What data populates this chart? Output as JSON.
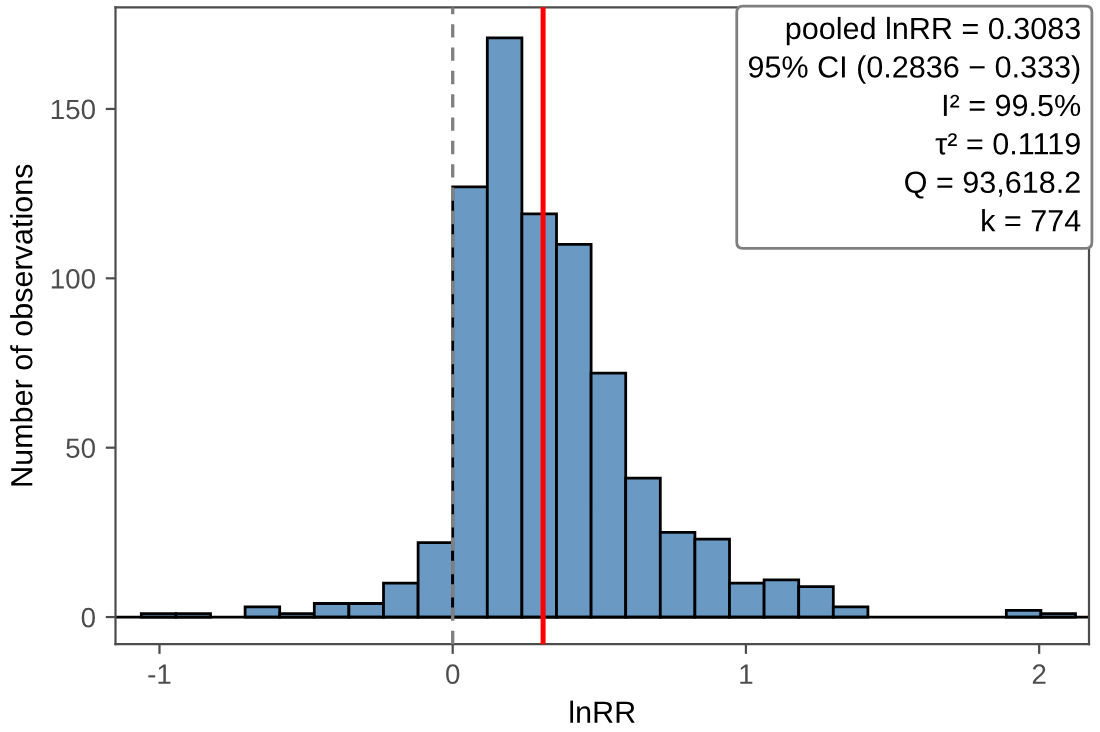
{
  "chart_data": {
    "type": "histogram",
    "xlabel": "lnRR",
    "ylabel": "Number of observations",
    "bins": [
      -1.062,
      -0.944,
      -0.826,
      -0.708,
      -0.59,
      -0.472,
      -0.354,
      -0.236,
      -0.118,
      0,
      0.118,
      0.236,
      0.354,
      0.472,
      0.59,
      0.708,
      0.826,
      0.944,
      1.062,
      1.18,
      1.298,
      1.416,
      1.534,
      1.652,
      1.77,
      1.888,
      2.006,
      2.124
    ],
    "values": [
      1,
      1,
      0,
      3,
      1,
      4,
      4,
      10,
      22,
      127,
      171,
      119,
      110,
      72,
      41,
      25,
      23,
      10,
      11,
      9,
      3,
      0,
      0,
      0,
      0,
      2,
      1
    ],
    "color": "#6a9ac4",
    "xlim": [
      -1.15,
      2.17
    ],
    "xticks": [
      -1,
      0,
      1,
      2
    ],
    "ylim": [
      -8,
      180
    ],
    "yticks": [
      0,
      50,
      100,
      150
    ],
    "grid": false,
    "legend": false,
    "ref_lines": [
      {
        "axis": "x",
        "value": 0,
        "color": "#808080",
        "line_style": "dashed"
      },
      {
        "axis": "x",
        "value": 0.3083,
        "color": "#ff0000",
        "line_style": "solid"
      }
    ],
    "annotations": [
      "pooled lnRR = 0.3083",
      "95% CI (0.2836 − 0.333)",
      "I² = 99.5%",
      "τ² = 0.1119",
      "Q = 93,618.2",
      "k = 774"
    ]
  }
}
